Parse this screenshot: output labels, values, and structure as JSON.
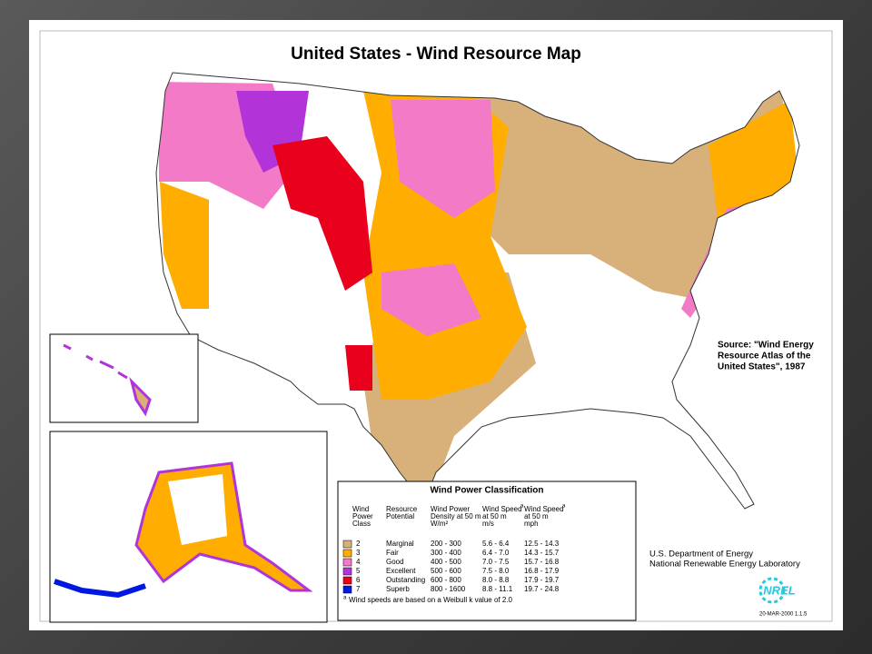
{
  "title": "United States - Wind Resource Map",
  "source": [
    "Source:  \"Wind Energy",
    "Resource Atlas of the",
    "United States\", 1987"
  ],
  "legend": {
    "title": "Wind Power Classification",
    "headers": [
      [
        "Wind",
        "Power",
        "Class"
      ],
      [
        "Resource",
        "Potential"
      ],
      [
        "Wind Power",
        "Density at 50 m",
        "W/m²"
      ],
      [
        "Wind Speed",
        "at 50 m",
        "m/s"
      ],
      [
        "Wind Speed",
        "at 50 m",
        "mph"
      ]
    ],
    "footnote_mark": "a",
    "rows": [
      {
        "class": "2",
        "potential": "Marginal",
        "density": "200 - 300",
        "ms": "5.6 - 6.4",
        "mph": "12.5 - 14.3",
        "color": "#d8b07a"
      },
      {
        "class": "3",
        "potential": "Fair",
        "density": "300 - 400",
        "ms": "6.4 - 7.0",
        "mph": "14.3 - 15.7",
        "color": "#ffad00"
      },
      {
        "class": "4",
        "potential": "Good",
        "density": "400 - 500",
        "ms": "7.0 - 7.5",
        "mph": "15.7 - 16.8",
        "color": "#f27ac6"
      },
      {
        "class": "5",
        "potential": "Excellent",
        "density": "500 - 600",
        "ms": "7.5 - 8.0",
        "mph": "16.8 - 17.9",
        "color": "#b234d8"
      },
      {
        "class": "6",
        "potential": "Outstanding",
        "density": "600 - 800",
        "ms": "8.0 - 8.8",
        "mph": "17.9 - 19.7",
        "color": "#e8001c"
      },
      {
        "class": "7",
        "potential": "Superb",
        "density": "800 - 1600",
        "ms": "8.8 - 11.1",
        "mph": "19.7 - 24.8",
        "color": "#0018e0"
      }
    ],
    "footnote": "Wind speeds are based on a Weibull k value of 2.0"
  },
  "agency": [
    "U.S. Department of Energy",
    "National Renewable Energy Laboratory"
  ],
  "logo": "NREL",
  "date_code": "20-MAR-2000 1.1.5"
}
